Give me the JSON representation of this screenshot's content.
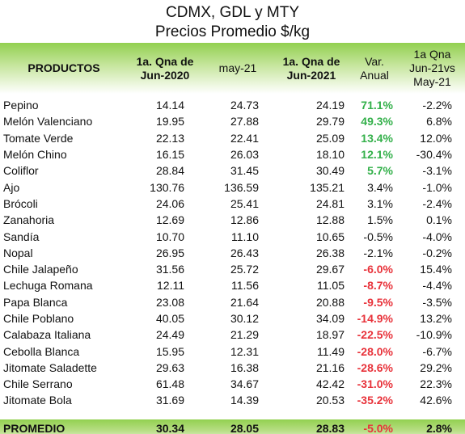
{
  "title": {
    "line1": "CDMX, GDL y MTY",
    "line2": "Precios Promedio $/kg"
  },
  "headers": {
    "productos": "PRODUCTOS",
    "qna2020_a": "1a. Qna de",
    "qna2020_b": "Jun-2020",
    "may21": "may-21",
    "qna2021_a": "1a. Qna de",
    "qna2021_b": "Jun-2021",
    "var_a": "Var.",
    "var_b": "Anual",
    "jm_a": "1a Qna",
    "jm_b": "Jun-21vs",
    "jm_c": "May-21"
  },
  "colors": {
    "header_green": "#92d050",
    "positive": "#33b04a",
    "negative": "#e8323a"
  },
  "rows": [
    {
      "producto": "Pepino",
      "qna2020": "14.14",
      "may21": "24.73",
      "qna2021": "24.19",
      "var": "71.1%",
      "var_style": "pos",
      "jm": "-2.2%"
    },
    {
      "producto": "Melón Valenciano",
      "qna2020": "19.95",
      "may21": "27.88",
      "qna2021": "29.79",
      "var": "49.3%",
      "var_style": "pos",
      "jm": "6.8%"
    },
    {
      "producto": "Tomate Verde",
      "qna2020": "22.13",
      "may21": "22.41",
      "qna2021": "25.09",
      "var": "13.4%",
      "var_style": "pos",
      "jm": "12.0%"
    },
    {
      "producto": "Melón Chino",
      "qna2020": "16.15",
      "may21": "26.03",
      "qna2021": "18.10",
      "var": "12.1%",
      "var_style": "pos",
      "jm": "-30.4%"
    },
    {
      "producto": "Coliflor",
      "qna2020": "28.84",
      "may21": "31.45",
      "qna2021": "30.49",
      "var": "5.7%",
      "var_style": "pos",
      "jm": "-3.1%"
    },
    {
      "producto": "Ajo",
      "qna2020": "130.76",
      "may21": "136.59",
      "qna2021": "135.21",
      "var": "3.4%",
      "var_style": "neutral",
      "jm": "-1.0%"
    },
    {
      "producto": "Brócoli",
      "qna2020": "24.06",
      "may21": "25.41",
      "qna2021": "24.81",
      "var": "3.1%",
      "var_style": "neutral",
      "jm": "-2.4%"
    },
    {
      "producto": "Zanahoria",
      "qna2020": "12.69",
      "may21": "12.86",
      "qna2021": "12.88",
      "var": "1.5%",
      "var_style": "neutral",
      "jm": "0.1%"
    },
    {
      "producto": "Sandía",
      "qna2020": "10.70",
      "may21": "11.10",
      "qna2021": "10.65",
      "var": "-0.5%",
      "var_style": "neutral",
      "jm": "-4.0%"
    },
    {
      "producto": "Nopal",
      "qna2020": "26.95",
      "may21": "26.43",
      "qna2021": "26.38",
      "var": "-2.1%",
      "var_style": "neutral",
      "jm": "-0.2%"
    },
    {
      "producto": "Chile Jalapeño",
      "qna2020": "31.56",
      "may21": "25.72",
      "qna2021": "29.67",
      "var": "-6.0%",
      "var_style": "neg",
      "jm": "15.4%"
    },
    {
      "producto": "Lechuga Romana",
      "qna2020": "12.11",
      "may21": "11.56",
      "qna2021": "11.05",
      "var": "-8.7%",
      "var_style": "neg",
      "jm": "-4.4%"
    },
    {
      "producto": "Papa Blanca",
      "qna2020": "23.08",
      "may21": "21.64",
      "qna2021": "20.88",
      "var": "-9.5%",
      "var_style": "neg",
      "jm": "-3.5%"
    },
    {
      "producto": "Chile Poblano",
      "qna2020": "40.05",
      "may21": "30.12",
      "qna2021": "34.09",
      "var": "-14.9%",
      "var_style": "neg",
      "jm": "13.2%"
    },
    {
      "producto": "Calabaza Italiana",
      "qna2020": "24.49",
      "may21": "21.29",
      "qna2021": "18.97",
      "var": "-22.5%",
      "var_style": "neg",
      "jm": "-10.9%"
    },
    {
      "producto": "Cebolla Blanca",
      "qna2020": "15.95",
      "may21": "12.31",
      "qna2021": "11.49",
      "var": "-28.0%",
      "var_style": "neg",
      "jm": "-6.7%"
    },
    {
      "producto": "Jitomate Saladette",
      "qna2020": "29.63",
      "may21": "16.38",
      "qna2021": "21.16",
      "var": "-28.6%",
      "var_style": "neg",
      "jm": "29.2%"
    },
    {
      "producto": "Chile Serrano",
      "qna2020": "61.48",
      "may21": "34.67",
      "qna2021": "42.42",
      "var": "-31.0%",
      "var_style": "neg",
      "jm": "22.3%"
    },
    {
      "producto": "Jitomate Bola",
      "qna2020": "31.69",
      "may21": "14.39",
      "qna2021": "20.53",
      "var": "-35.2%",
      "var_style": "neg",
      "jm": "42.6%"
    }
  ],
  "promedio": {
    "label": "PROMEDIO",
    "qna2020": "30.34",
    "may21": "28.05",
    "qna2021": "28.83",
    "var": "-5.0%",
    "var_style": "neg",
    "jm": "2.8%"
  }
}
